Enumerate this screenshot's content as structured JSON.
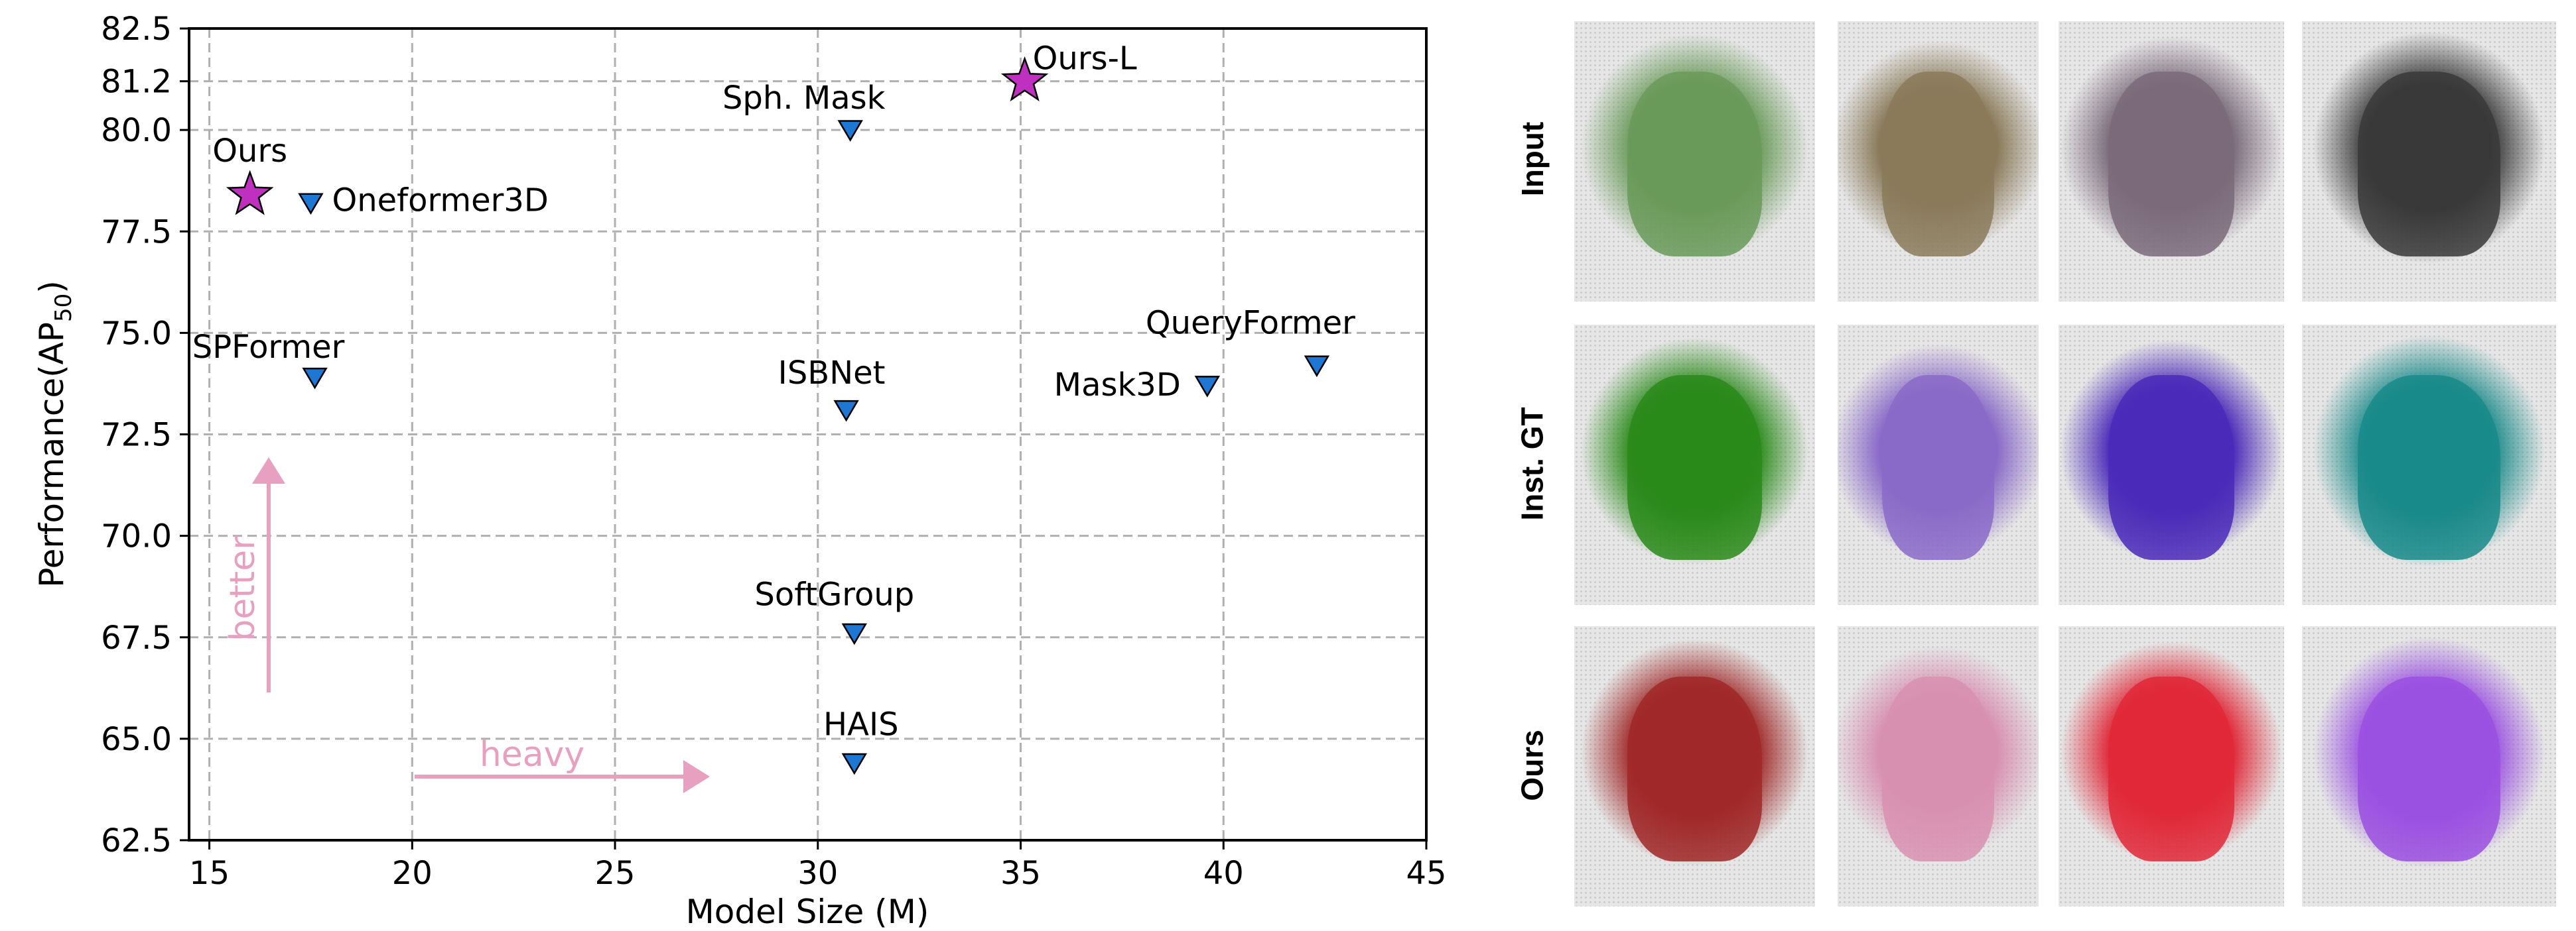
{
  "chart_data": {
    "type": "scatter",
    "xlabel": "Model Size (M)",
    "ylabel_main": "Performance(AP",
    "ylabel_sub": "50",
    "ylabel_close": ")",
    "xlim": [
      14.5,
      45
    ],
    "ylim": [
      62.5,
      82.5
    ],
    "xticks": [
      15,
      20,
      25,
      30,
      35,
      40,
      45
    ],
    "yticks": [
      62.5,
      65.0,
      67.5,
      70.0,
      72.5,
      75.0,
      77.5,
      80.0,
      81.2,
      82.5
    ],
    "ytick_labels": [
      "62.5",
      "65.0",
      "67.5",
      "70.0",
      "72.5",
      "75.0",
      "77.5",
      "80.0",
      "81.2",
      "82.5"
    ],
    "grid": true,
    "points": [
      {
        "label": "Ours",
        "x": 16.0,
        "y": 78.4,
        "marker": "star",
        "color": "#c030c0"
      },
      {
        "label": "Ours-L",
        "x": 35.1,
        "y": 81.2,
        "marker": "star",
        "color": "#c030c0"
      },
      {
        "label": "Oneformer3D",
        "x": 17.5,
        "y": 78.2,
        "marker": "triangle_down",
        "color": "#1f77d4"
      },
      {
        "label": "Sph. Mask",
        "x": 30.8,
        "y": 80.0,
        "marker": "triangle_down",
        "color": "#1f77d4"
      },
      {
        "label": "SPFormer",
        "x": 17.6,
        "y": 73.9,
        "marker": "triangle_down",
        "color": "#1f77d4"
      },
      {
        "label": "ISBNet",
        "x": 30.7,
        "y": 73.1,
        "marker": "triangle_down",
        "color": "#1f77d4"
      },
      {
        "label": "Mask3D",
        "x": 39.6,
        "y": 73.7,
        "marker": "triangle_down",
        "color": "#1f77d4"
      },
      {
        "label": "QueryFormer",
        "x": 42.3,
        "y": 74.2,
        "marker": "triangle_down",
        "color": "#1f77d4"
      },
      {
        "label": "SoftGroup",
        "x": 30.9,
        "y": 67.6,
        "marker": "triangle_down",
        "color": "#1f77d4"
      },
      {
        "label": "HAIS",
        "x": 30.9,
        "y": 64.4,
        "marker": "triangle_down",
        "color": "#1f77d4"
      }
    ],
    "annotations": [
      {
        "text": "better",
        "direction": "up",
        "color": "#e8a0c0"
      },
      {
        "text": "heavy",
        "direction": "right",
        "color": "#e8a0c0"
      }
    ]
  },
  "panels": {
    "row_labels": [
      "Input",
      "Inst. GT",
      "Ours"
    ],
    "thumbnail_colors": [
      [
        "#6a9a5a",
        "#8a7a5a",
        "#7a6a7a",
        "#3a3a3a"
      ],
      [
        "#2a8a1a",
        "#8a6ac8",
        "#4a2ab8",
        "#1a8a8a"
      ],
      [
        "#a02828",
        "#d890b0",
        "#e02838",
        "#9a50e0"
      ]
    ]
  }
}
